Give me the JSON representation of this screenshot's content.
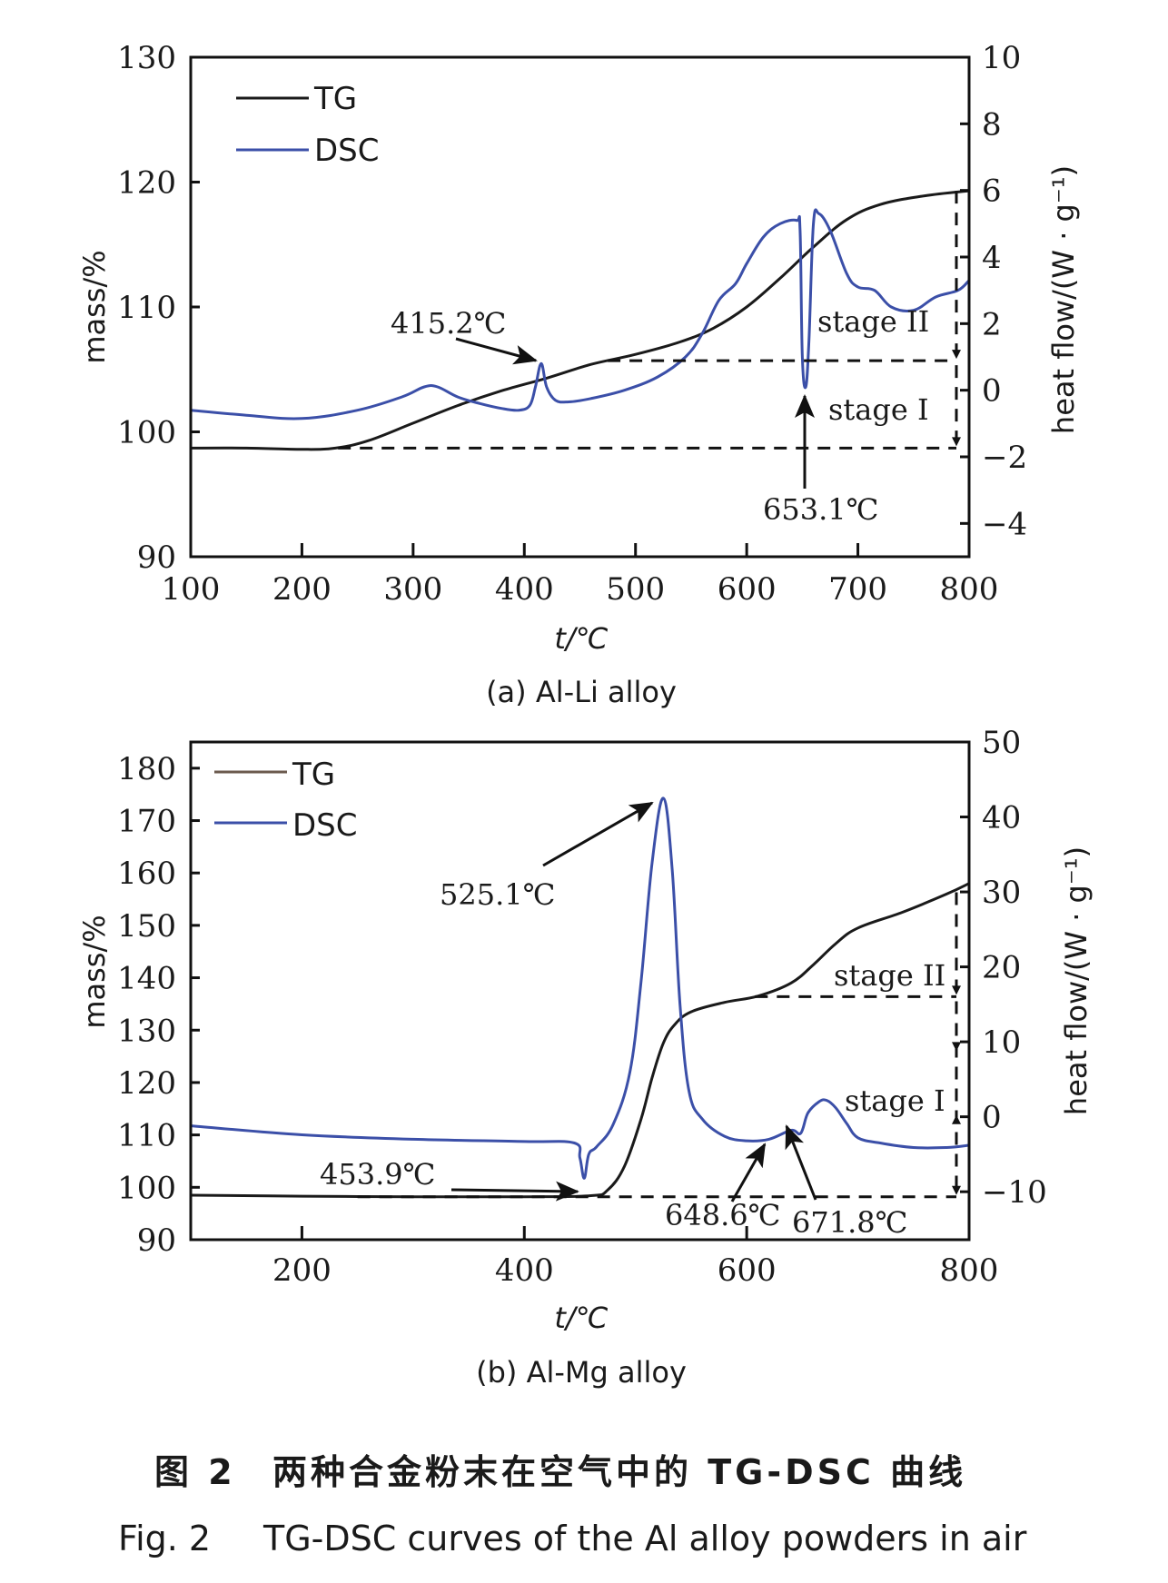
{
  "chart_data": [
    {
      "type": "line",
      "panel_caption": "(a) Al-Li alloy",
      "xlabel": "t/℃",
      "ylabel_left": "mass/%",
      "ylabel_right": "heat flow/(W · g⁻¹)",
      "xlim": [
        100,
        800
      ],
      "ylim_left": [
        90,
        130
      ],
      "ylim_right": [
        -5,
        10
      ],
      "x_ticks": [
        "100",
        "200",
        "300",
        "400",
        "500",
        "600",
        "700",
        "800"
      ],
      "y_left_ticks": [
        "90",
        "100",
        "110",
        "120",
        "130"
      ],
      "y_right_ticks": [
        "−4",
        "−2",
        "0",
        "2",
        "4",
        "6",
        "8",
        "10"
      ],
      "legend": [
        {
          "name": "TG",
          "color": "#1a1a1a"
        },
        {
          "name": "DSC",
          "color": "#3b4fa8"
        }
      ],
      "legend_position": "top-left",
      "series": [
        {
          "name": "TG",
          "axis": "left",
          "color": "#1a1a1a",
          "x": [
            100,
            150,
            200,
            230,
            260,
            300,
            340,
            380,
            420,
            460,
            500,
            540,
            570,
            600,
            630,
            660,
            690,
            720,
            760,
            800
          ],
          "y": [
            98.7,
            98.7,
            98.6,
            98.7,
            99.3,
            100.7,
            102.1,
            103.3,
            104.3,
            105.4,
            106.2,
            107.2,
            108.3,
            110.0,
            112.3,
            114.8,
            117.0,
            118.2,
            118.9,
            119.3
          ]
        },
        {
          "name": "DSC",
          "axis": "right",
          "color": "#3b4fa8",
          "x": [
            100,
            150,
            200,
            250,
            290,
            310,
            322,
            340,
            360,
            380,
            395,
            405,
            410,
            415.2,
            420,
            428,
            440,
            460,
            490,
            520,
            545,
            560,
            575,
            590,
            600,
            615,
            630,
            645,
            648,
            650,
            653.1,
            656,
            660,
            665,
            675,
            690,
            700,
            715,
            730,
            750,
            770,
            790,
            800
          ],
          "y": [
            -0.6,
            -0.75,
            -0.85,
            -0.6,
            -0.2,
            0.1,
            0.1,
            -0.2,
            -0.4,
            -0.55,
            -0.6,
            -0.45,
            0.1,
            0.8,
            0.1,
            -0.3,
            -0.35,
            -0.25,
            0.0,
            0.4,
            1.0,
            1.7,
            2.7,
            3.2,
            3.8,
            4.6,
            5.0,
            5.1,
            4.8,
            1.0,
            0.1,
            1.5,
            5.0,
            5.3,
            4.8,
            3.5,
            3.1,
            3.0,
            2.5,
            2.4,
            2.8,
            3.0,
            3.3
          ]
        }
      ],
      "annotations": [
        {
          "text": "415.2℃",
          "x": 415.2
        },
        {
          "text": "653.1℃",
          "x": 653.1
        },
        {
          "text": "stage II"
        },
        {
          "text": "stage I"
        }
      ],
      "reference_lines_mass": [
        98.7,
        105.7,
        119.3
      ]
    },
    {
      "type": "line",
      "panel_caption": "(b) Al-Mg alloy",
      "xlabel": "t/℃",
      "ylabel_left": "mass/%",
      "ylabel_right": "heat flow/(W · g⁻¹)",
      "xlim": [
        100,
        800
      ],
      "ylim_left": [
        90,
        185
      ],
      "ylim_right": [
        -16.4,
        50
      ],
      "x_ticks": [
        "200",
        "400",
        "600",
        "800"
      ],
      "y_left_ticks": [
        "90",
        "100",
        "110",
        "120",
        "130",
        "140",
        "150",
        "160",
        "170",
        "180"
      ],
      "y_right_ticks": [
        "−10",
        "0",
        "10",
        "20",
        "30",
        "40",
        "50"
      ],
      "legend": [
        {
          "name": "TG",
          "color": "#1a1a1a"
        },
        {
          "name": "DSC",
          "color": "#3b4fa8"
        }
      ],
      "legend_position": "top-left",
      "series": [
        {
          "name": "TG",
          "axis": "left",
          "color": "#1a1a1a",
          "x": [
            100,
            200,
            300,
            400,
            460,
            475,
            490,
            505,
            515,
            525,
            535,
            550,
            580,
            610,
            640,
            660,
            680,
            700,
            740,
            780,
            800
          ],
          "y": [
            98.5,
            98.3,
            98.2,
            98.2,
            98.4,
            99.5,
            104,
            113,
            121,
            127.5,
            131,
            133.5,
            135.3,
            136.5,
            139,
            142.5,
            146.5,
            149.5,
            152.5,
            156,
            158
          ]
        },
        {
          "name": "DSC",
          "axis": "right",
          "color": "#3b4fa8",
          "x": [
            100,
            200,
            300,
            400,
            445,
            450,
            453.9,
            458,
            465,
            480,
            495,
            505,
            515,
            525.1,
            533,
            540,
            548,
            560,
            580,
            600,
            620,
            640,
            648.6,
            655,
            665,
            671.8,
            680,
            690,
            700,
            720,
            750,
            780,
            800
          ],
          "y": [
            -1.2,
            -2.4,
            -3.0,
            -3.3,
            -3.5,
            -5.5,
            -8.2,
            -5.0,
            -4.0,
            -1.0,
            6.0,
            18.0,
            34.0,
            42.5,
            33.0,
            15.0,
            3.5,
            -0.3,
            -2.6,
            -3.2,
            -3.0,
            -1.8,
            -2.2,
            0.5,
            2.0,
            2.2,
            1.2,
            -0.9,
            -2.8,
            -3.5,
            -4.1,
            -4.1,
            -3.8
          ]
        }
      ],
      "annotations": [
        {
          "text": "525.1℃",
          "x": 525.1
        },
        {
          "text": "453.9℃",
          "x": 453.9
        },
        {
          "text": "648.6℃",
          "x": 648.6
        },
        {
          "text": "671.8℃",
          "x": 671.8
        },
        {
          "text": "stage II"
        },
        {
          "text": "stage I"
        }
      ],
      "reference_lines_mass": [
        98.2,
        136.4,
        156.3
      ]
    }
  ],
  "caption": {
    "cn_label": "图 2",
    "cn_title": "两种合金粉末在空气中的 TG-DSC 曲线",
    "en_label": "Fig. 2",
    "en_title": "TG-DSC curves of the Al alloy powders in air"
  }
}
